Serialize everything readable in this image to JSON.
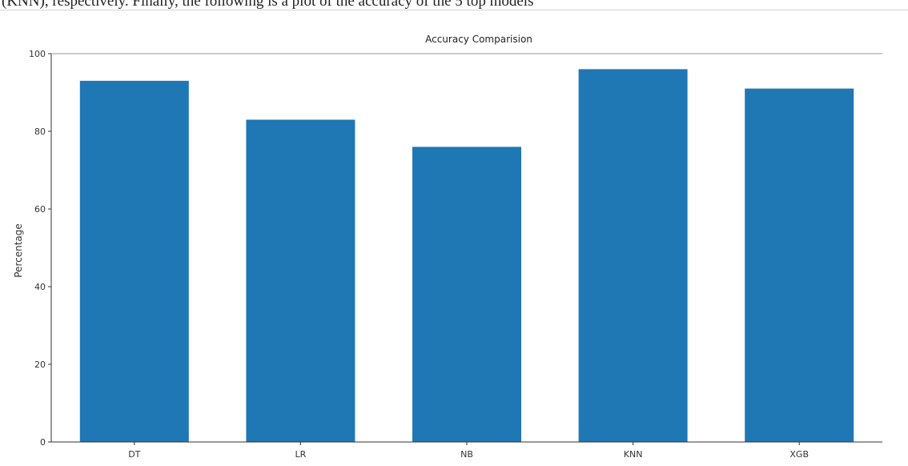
{
  "page": {
    "caption_fragment": "(KNN), respectively. Finally, the following is a plot of the accuracy of the 5 top models"
  },
  "chart_data": {
    "type": "bar",
    "title": "Accuracy Comparision",
    "xlabel": "",
    "ylabel": "Percentage",
    "categories": [
      "DT",
      "LR",
      "NB",
      "KNN",
      "XGB"
    ],
    "values": [
      93,
      83,
      76,
      96,
      91
    ],
    "ylim": [
      0,
      100
    ],
    "yticks": [
      0,
      20,
      40,
      60,
      80,
      100
    ],
    "grid": false,
    "bar_color": "#1f77b4",
    "axis_color": "#333333"
  }
}
